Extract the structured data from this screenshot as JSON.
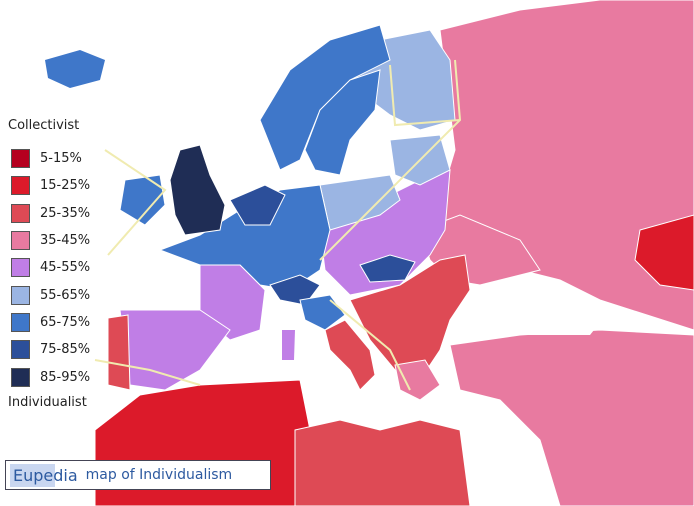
{
  "legend": {
    "top_label": "Collectivist",
    "bottom_label": "Individualist",
    "items": [
      {
        "label": "5-15%",
        "color": "#b5001f"
      },
      {
        "label": "15-25%",
        "color": "#dc1a2a"
      },
      {
        "label": "25-35%",
        "color": "#de4a55"
      },
      {
        "label": "35-45%",
        "color": "#e87aa0"
      },
      {
        "label": "45-55%",
        "color": "#c07ee6"
      },
      {
        "label": "55-65%",
        "color": "#9bb5e3"
      },
      {
        "label": "65-75%",
        "color": "#3f77c9"
      },
      {
        "label": "75-85%",
        "color": "#2c4f9a"
      },
      {
        "label": "85-95%",
        "color": "#1f2d55"
      }
    ]
  },
  "caption": {
    "brand": "Eupedia",
    "text": "map of Individualism"
  }
}
